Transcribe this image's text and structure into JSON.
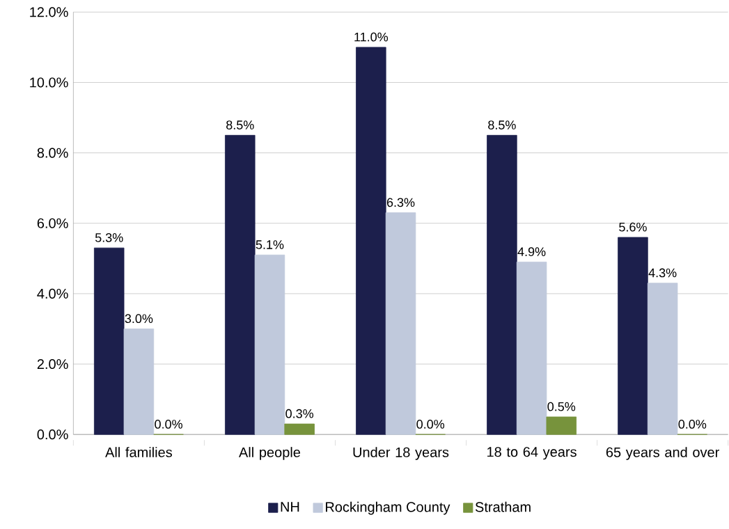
{
  "chart_data": {
    "type": "bar",
    "categories": [
      "All families",
      "All people",
      "Under 18 years",
      "18 to 64 years",
      "65 years and over"
    ],
    "series": [
      {
        "name": "NH",
        "color": "#1c1f4c",
        "values": [
          5.3,
          8.5,
          11.0,
          8.5,
          5.6
        ],
        "value_labels": [
          "5.3%",
          "8.5%",
          "11.0%",
          "8.5%",
          "5.6%"
        ]
      },
      {
        "name": "Rockingham County",
        "color": "#c0c9dc",
        "values": [
          3.0,
          5.1,
          6.3,
          4.9,
          4.3
        ],
        "value_labels": [
          "3.0%",
          "5.1%",
          "6.3%",
          "4.9%",
          "4.3%"
        ]
      },
      {
        "name": "Stratham",
        "color": "#77933c",
        "values": [
          0.0,
          0.3,
          0.0,
          0.5,
          0.0
        ],
        "value_labels": [
          "0.0%",
          "0.3%",
          "0.0%",
          "0.5%",
          "0.0%"
        ]
      }
    ],
    "ylim": [
      0,
      12
    ],
    "yticks": [
      {
        "value": 0,
        "label": "0.0%"
      },
      {
        "value": 2,
        "label": "2.0%"
      },
      {
        "value": 4,
        "label": "4.0%"
      },
      {
        "value": 6,
        "label": "6.0%"
      },
      {
        "value": 8,
        "label": "8.0%"
      },
      {
        "value": 10,
        "label": "10.0%"
      },
      {
        "value": 12,
        "label": "12.0%"
      }
    ],
    "grid": "y",
    "legend": "bottom"
  }
}
